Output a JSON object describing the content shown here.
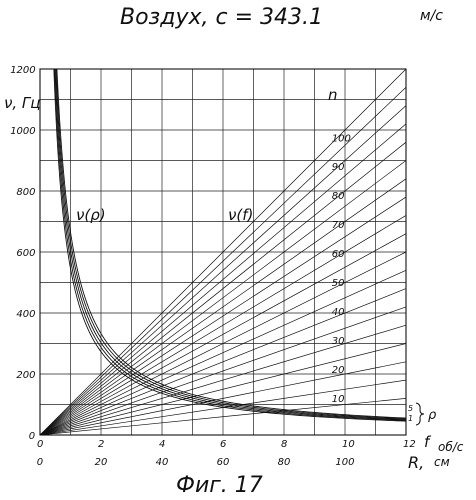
{
  "chart_data": {
    "type": "line",
    "title": "Воздух,  c = 343.1",
    "title_unit": "м/с",
    "caption": "Фиг. 17",
    "ylabel": "ν, Гц",
    "xlabel_f": "f",
    "xlabel_f_unit": "об/с",
    "xlabel_R": "R,",
    "xlabel_R_unit": "см",
    "n_label": "n",
    "rho_group_label": "ρ",
    "rho_bracket_top": "5",
    "rho_bracket_bottom": "1",
    "curve_label_rho": "ν(ρ)",
    "curve_label_f": "ν(f)",
    "x_f": {
      "range": [
        0,
        12
      ],
      "ticks": [
        "0",
        "2",
        "4",
        "6",
        "8",
        "10",
        "12"
      ],
      "tick_values": [
        0,
        2,
        4,
        6,
        8,
        10,
        12
      ]
    },
    "x_R": {
      "range": [
        0,
        120
      ],
      "ticks": [
        "0",
        "20",
        "40",
        "60",
        "80",
        "100"
      ],
      "tick_values": [
        0,
        20,
        40,
        60,
        80,
        100
      ]
    },
    "y": {
      "range": [
        0,
        1200
      ],
      "ticks": [
        "0",
        "200",
        "400",
        "600",
        "800",
        "1000",
        "1200"
      ],
      "tick_values": [
        0,
        200,
        400,
        600,
        800,
        1000,
        1200
      ]
    },
    "grid": true,
    "series_f": [
      {
        "n": 10,
        "label": "10",
        "slope": 10
      },
      {
        "n": 15,
        "label": "",
        "slope": 15
      },
      {
        "n": 20,
        "label": "20",
        "slope": 20
      },
      {
        "n": 25,
        "label": "",
        "slope": 25
      },
      {
        "n": 30,
        "label": "30",
        "slope": 30
      },
      {
        "n": 35,
        "label": "",
        "slope": 35
      },
      {
        "n": 40,
        "label": "40",
        "slope": 40
      },
      {
        "n": 45,
        "label": "",
        "slope": 45
      },
      {
        "n": 50,
        "label": "50",
        "slope": 50
      },
      {
        "n": 55,
        "label": "",
        "slope": 55
      },
      {
        "n": 60,
        "label": "60",
        "slope": 60
      },
      {
        "n": 65,
        "label": "",
        "slope": 65
      },
      {
        "n": 70,
        "label": "70",
        "slope": 70
      },
      {
        "n": 75,
        "label": "",
        "slope": 75
      },
      {
        "n": 80,
        "label": "80",
        "slope": 80
      },
      {
        "n": 85,
        "label": "",
        "slope": 85
      },
      {
        "n": 90,
        "label": "90",
        "slope": 90
      },
      {
        "n": 95,
        "label": "",
        "slope": 95
      },
      {
        "n": 100,
        "label": "100",
        "slope": 100
      }
    ],
    "series_rho": [
      {
        "rho": 1,
        "k": 5460
      },
      {
        "rho": 2,
        "k": 5750
      },
      {
        "rho": 3,
        "k": 6050
      },
      {
        "rho": 4,
        "k": 6350
      },
      {
        "rho": 5,
        "k": 6650
      }
    ]
  }
}
